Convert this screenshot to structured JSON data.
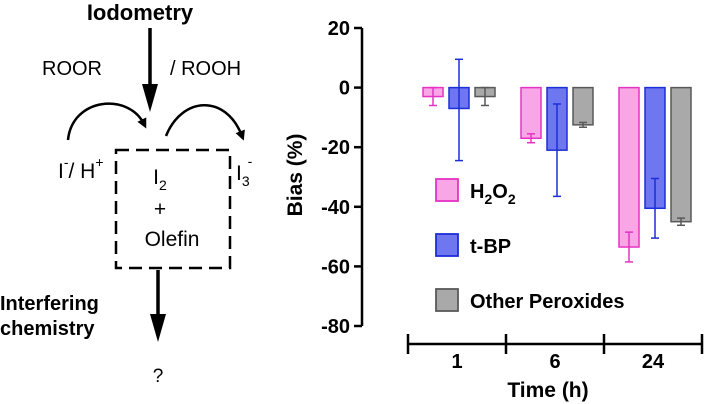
{
  "scheme": {
    "title": "Iodometry",
    "reagent_left": "ROOR",
    "reagent_right": "/ ROOH",
    "reactant": {
      "main": "I",
      "charge": "-",
      "tail": "/ H",
      "tail_charge": "+"
    },
    "product": {
      "main": "I",
      "sub": "3",
      "charge": "-"
    },
    "box": {
      "line1_main": "I",
      "line1_sub": "2",
      "line2": "+",
      "line3": "Olefin"
    },
    "bottom_line1": "Interfering",
    "bottom_line2": "chemistry",
    "question": "?"
  },
  "chart_data": {
    "type": "bar",
    "xlabel": "Time (h)",
    "ylabel": "Bias (%)",
    "ylim": [
      -80,
      20
    ],
    "yticks": [
      20,
      0,
      -20,
      -40,
      -60,
      -80
    ],
    "categories": [
      "1",
      "6",
      "24"
    ],
    "series": [
      {
        "name": "H2O2",
        "color_fill": "#f9a6e6",
        "color_edge": "#e633c4",
        "values": [
          -3,
          -17,
          -53.5
        ],
        "err_low": [
          3,
          1.5,
          5
        ],
        "err_high": [
          3,
          1.5,
          5
        ]
      },
      {
        "name": "t-BP",
        "color_fill": "#6e76f0",
        "color_edge": "#1d2fd6",
        "values": [
          -7,
          -21,
          -40.5
        ],
        "err_low": [
          17.5,
          15.5,
          10
        ],
        "err_high": [
          16.5,
          15.5,
          10
        ]
      },
      {
        "name": "Other Peroxides",
        "color_fill": "#a9a9a9",
        "color_edge": "#595959",
        "values": [
          -3,
          -12.5,
          -45
        ],
        "err_low": [
          3,
          0.8,
          1.2
        ],
        "err_high": [
          3,
          0.8,
          1.2
        ]
      }
    ],
    "legend": [
      {
        "main": "H",
        "sub1": "2",
        "mid": "O",
        "sub2": "2"
      },
      {
        "text": "t-BP"
      },
      {
        "text": "Other Peroxides"
      }
    ],
    "legend_position": "bottom-right",
    "grid": false
  }
}
